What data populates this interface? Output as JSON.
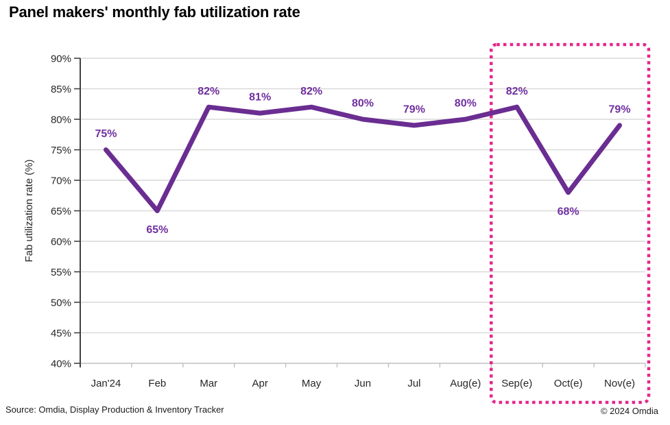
{
  "page": {
    "title": "Panel makers' monthly fab utilization rate",
    "source": "Source: Omdia, Display Production & Inventory Tracker",
    "copyright": "© 2024 Omdia"
  },
  "chart_data": {
    "type": "line",
    "title": "Panel makers' monthly fab utilization rate",
    "xlabel": "",
    "ylabel": "Fab utilization rate (%)",
    "categories": [
      "Jan'24",
      "Feb",
      "Mar",
      "Apr",
      "May",
      "Jun",
      "Jul",
      "Aug(e)",
      "Sep(e)",
      "Oct(e)",
      "Nov(e)"
    ],
    "values": [
      75,
      65,
      82,
      81,
      82,
      80,
      79,
      80,
      82,
      68,
      79
    ],
    "point_labels": [
      "75%",
      "65%",
      "82%",
      "81%",
      "82%",
      "80%",
      "79%",
      "80%",
      "82%",
      "68%",
      "79%"
    ],
    "label_positions": [
      "above",
      "below",
      "above",
      "above",
      "above",
      "above",
      "above",
      "above",
      "above",
      "below",
      "above"
    ],
    "ylim": [
      40,
      90
    ],
    "ytick_step": 5,
    "ytick_suffix": "%",
    "grid": true,
    "legend": false,
    "line_color": "#6A2D91",
    "label_color": "#7030A0",
    "axis_color": "#404040",
    "gridline_color": "#D9D9D9",
    "xaxis_color": "#BFBFBF",
    "highlight_box": {
      "months": [
        "Sep(e)",
        "Oct(e)",
        "Nov(e)"
      ],
      "from_index": 8,
      "to_index": 10,
      "color": "#E4268C",
      "style": "dotted"
    }
  }
}
